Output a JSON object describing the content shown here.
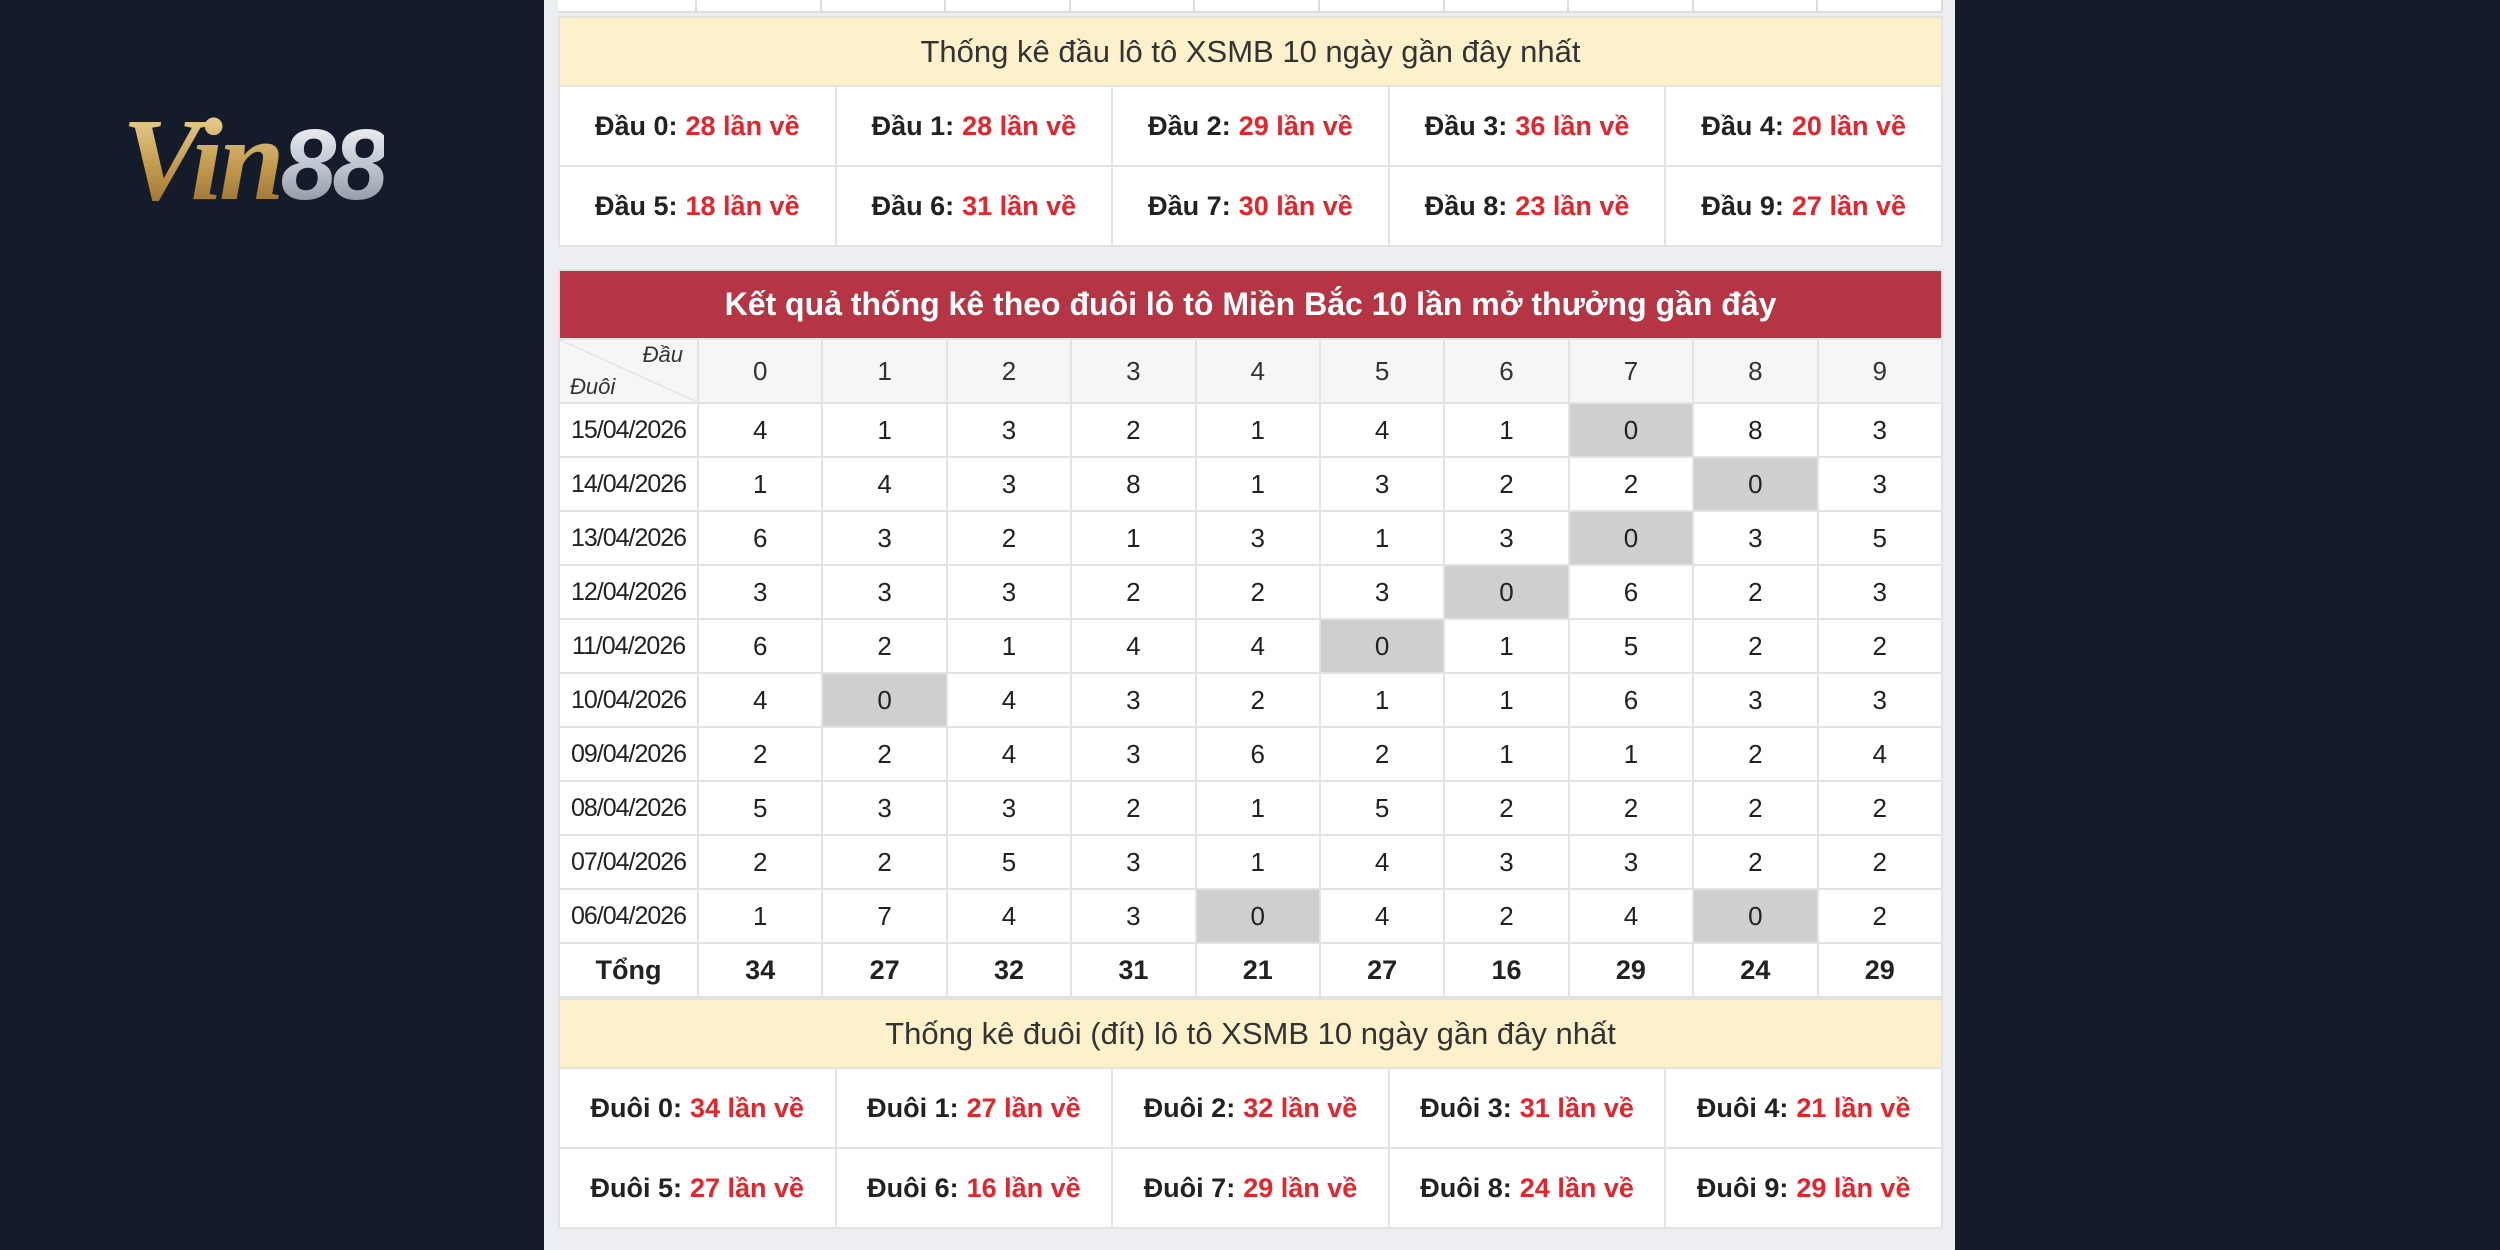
{
  "logo": {
    "part1": "Vin",
    "part2": "88"
  },
  "head_summary": {
    "title": "Thống kê đầu lô tô XSMB 10 ngày gần đây nhất",
    "items": [
      {
        "label": "Đầu 0:",
        "count": "28 lần về"
      },
      {
        "label": "Đầu 1:",
        "count": "28 lần về"
      },
      {
        "label": "Đầu 2:",
        "count": "29 lần về"
      },
      {
        "label": "Đầu 3:",
        "count": "36 lần về"
      },
      {
        "label": "Đầu 4:",
        "count": "20 lần về"
      },
      {
        "label": "Đầu 5:",
        "count": "18 lần về"
      },
      {
        "label": "Đầu 6:",
        "count": "31 lần về"
      },
      {
        "label": "Đầu 7:",
        "count": "30 lần về"
      },
      {
        "label": "Đầu 8:",
        "count": "23 lần về"
      },
      {
        "label": "Đầu 9:",
        "count": "27 lần về"
      }
    ]
  },
  "table": {
    "title": "Kết quả thống kê theo đuôi lô tô Miền Bắc 10 lần mở thưởng gần đây",
    "corner_top": "Đầu",
    "corner_bottom": "Đuôi",
    "columns": [
      "0",
      "1",
      "2",
      "3",
      "4",
      "5",
      "6",
      "7",
      "8",
      "9"
    ],
    "rows": [
      {
        "date": "15/04/2026",
        "cells": [
          4,
          1,
          3,
          2,
          1,
          4,
          1,
          0,
          8,
          3
        ]
      },
      {
        "date": "14/04/2026",
        "cells": [
          1,
          4,
          3,
          8,
          1,
          3,
          2,
          2,
          0,
          3
        ]
      },
      {
        "date": "13/04/2026",
        "cells": [
          6,
          3,
          2,
          1,
          3,
          1,
          3,
          0,
          3,
          5
        ]
      },
      {
        "date": "12/04/2026",
        "cells": [
          3,
          3,
          3,
          2,
          2,
          3,
          0,
          6,
          2,
          3
        ]
      },
      {
        "date": "11/04/2026",
        "cells": [
          6,
          2,
          1,
          4,
          4,
          0,
          1,
          5,
          2,
          2
        ]
      },
      {
        "date": "10/04/2026",
        "cells": [
          4,
          0,
          4,
          3,
          2,
          1,
          1,
          6,
          3,
          3
        ]
      },
      {
        "date": "09/04/2026",
        "cells": [
          2,
          2,
          4,
          3,
          6,
          2,
          1,
          1,
          2,
          4
        ]
      },
      {
        "date": "08/04/2026",
        "cells": [
          5,
          3,
          3,
          2,
          1,
          5,
          2,
          2,
          2,
          2
        ]
      },
      {
        "date": "07/04/2026",
        "cells": [
          2,
          2,
          5,
          3,
          1,
          4,
          3,
          3,
          2,
          2
        ]
      },
      {
        "date": "06/04/2026",
        "cells": [
          1,
          7,
          4,
          3,
          0,
          4,
          2,
          4,
          0,
          2
        ]
      }
    ],
    "total_label": "Tổng",
    "totals": [
      34,
      27,
      32,
      31,
      21,
      27,
      16,
      29,
      24,
      29
    ]
  },
  "tail_summary": {
    "title": "Thống kê đuôi (đít) lô tô XSMB 10 ngày gần đây nhất",
    "items": [
      {
        "label": "Đuôi 0:",
        "count": "34 lần về"
      },
      {
        "label": "Đuôi 1:",
        "count": "27 lần về"
      },
      {
        "label": "Đuôi 2:",
        "count": "32 lần về"
      },
      {
        "label": "Đuôi 3:",
        "count": "31 lần về"
      },
      {
        "label": "Đuôi 4:",
        "count": "21 lần về"
      },
      {
        "label": "Đuôi 5:",
        "count": "27 lần về"
      },
      {
        "label": "Đuôi 6:",
        "count": "16 lần về"
      },
      {
        "label": "Đuôi 7:",
        "count": "29 lần về"
      },
      {
        "label": "Đuôi 8:",
        "count": "24 lần về"
      },
      {
        "label": "Đuôi 9:",
        "count": "29 lần về"
      }
    ]
  }
}
